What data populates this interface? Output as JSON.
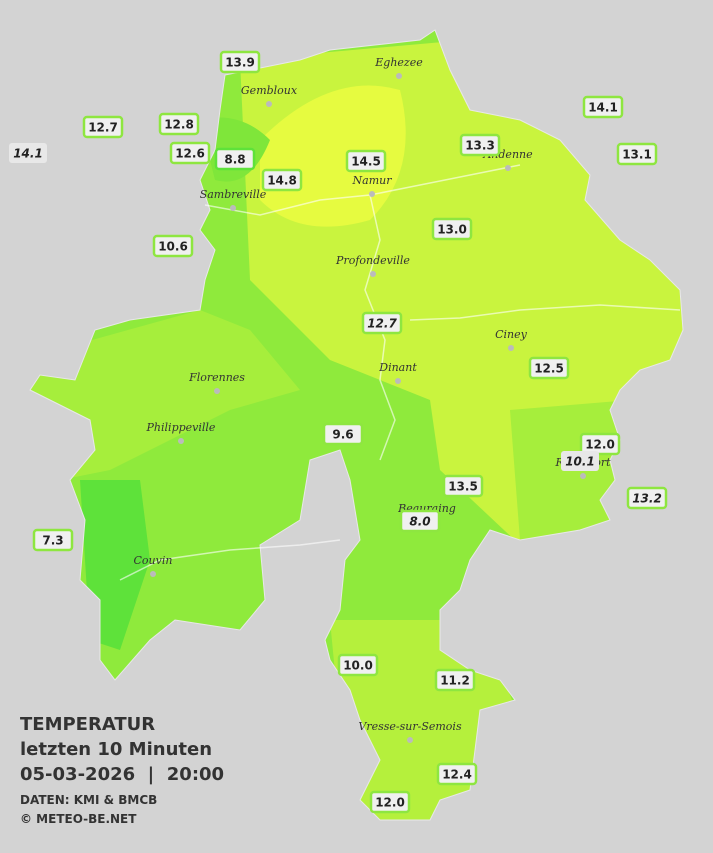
{
  "towns": [
    "Eghezee",
    "Gembloux",
    "Andenne",
    "Namur",
    "Sambreville",
    "Profondeville",
    "Ciney",
    "Dinant",
    "Florennes",
    "Philippeville",
    "Rochefort",
    "Beauraing",
    "Couvin",
    "Vresse-sur-Semois"
  ],
  "stations": [
    "13.9",
    "12.7",
    "12.8",
    "14.1",
    "12.6",
    "8.8",
    "14.8",
    "14.5",
    "13.3",
    "14.1",
    "13.1",
    "13.0",
    "10.6",
    "12.7",
    "12.5",
    "9.6",
    "12.0",
    "10.1",
    "13.5",
    "13.2",
    "8.0",
    "7.3",
    "10.0",
    "11.2",
    "12.4",
    "12.0"
  ],
  "caption": {
    "title": "TEMPERATUR",
    "period": "letzten 10 Minuten",
    "datetime": "05-03-2026  |  20:00",
    "source": "DATEN: KMI & BMCB",
    "copyright": "© METEO-BE.NET"
  }
}
